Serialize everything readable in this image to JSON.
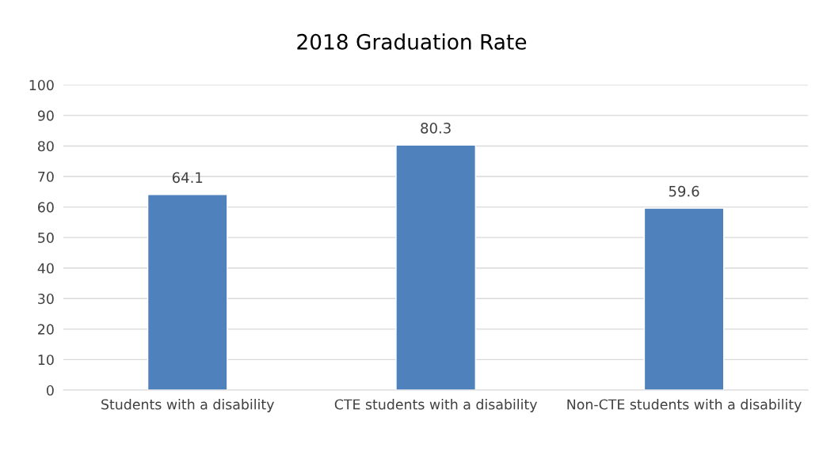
{
  "chart_data": {
    "type": "bar",
    "title": "2018 Graduation Rate",
    "categories": [
      "Students with a disability",
      "CTE students with a disability",
      "Non-CTE students with a disability"
    ],
    "values": [
      64.1,
      80.3,
      59.6
    ],
    "color": "#4f81bd",
    "ylim": [
      0,
      100
    ],
    "yticks": [
      0,
      10,
      20,
      30,
      40,
      50,
      60,
      70,
      80,
      90,
      100
    ],
    "grid": "y",
    "data_labels": true
  }
}
